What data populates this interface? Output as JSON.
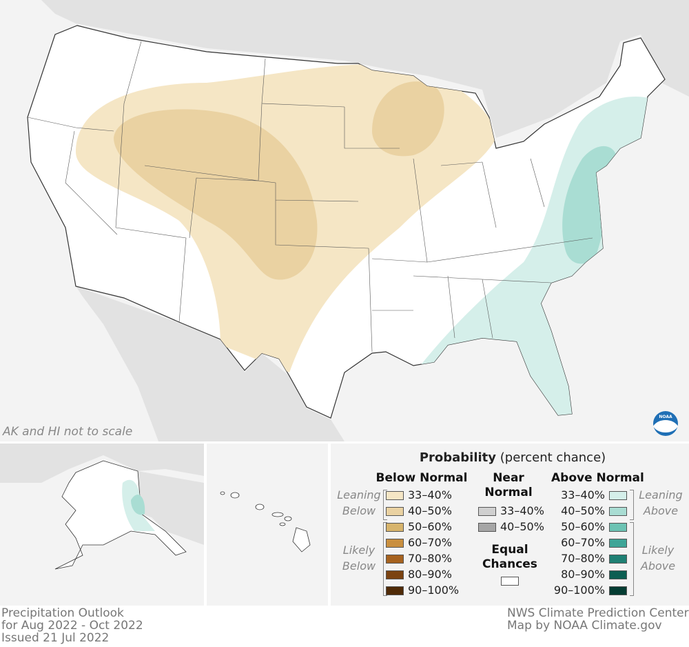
{
  "map": {
    "note": "AK and HI not to scale",
    "logo": "NOAA"
  },
  "legend": {
    "title": "Probability",
    "subtitle": "(percent chance)",
    "below": {
      "heading": "Below Normal",
      "leaning": "Leaning Below",
      "likely": "Likely Below",
      "items": [
        {
          "label": "33–40%",
          "color": "#f5e6c5"
        },
        {
          "label": "40–50%",
          "color": "#ead2a2"
        },
        {
          "label": "50–60%",
          "color": "#d7b46c"
        },
        {
          "label": "60–70%",
          "color": "#c98f3f"
        },
        {
          "label": "70–80%",
          "color": "#a6621f"
        },
        {
          "label": "80–90%",
          "color": "#7b4311"
        },
        {
          "label": "90–100%",
          "color": "#4f2a07"
        }
      ]
    },
    "near": {
      "heading": "Near Normal",
      "items": [
        {
          "label": "33–40%",
          "color": "#d0d0d0"
        },
        {
          "label": "40–50%",
          "color": "#a6a6a6"
        }
      ]
    },
    "equal": {
      "label": "Equal Chances",
      "color": "#ffffff"
    },
    "above": {
      "heading": "Above Normal",
      "leaning": "Leaning Above",
      "likely": "Likely Above",
      "items": [
        {
          "label": "33–40%",
          "color": "#d5efea"
        },
        {
          "label": "40–50%",
          "color": "#a9ddd3"
        },
        {
          "label": "50–60%",
          "color": "#6cc3b3"
        },
        {
          "label": "60–70%",
          "color": "#3ea597"
        },
        {
          "label": "70–80%",
          "color": "#1f8074"
        },
        {
          "label": "80–90%",
          "color": "#0c5e52"
        },
        {
          "label": "90–100%",
          "color": "#053d33"
        }
      ]
    }
  },
  "footer": {
    "left": [
      "Precipitation Outlook",
      "for Aug 2022 - Oct 2022",
      "Issued 21 Jul 2022"
    ],
    "right": [
      "NWS Climate Prediction Center",
      "Map by NOAA Climate.gov"
    ]
  }
}
